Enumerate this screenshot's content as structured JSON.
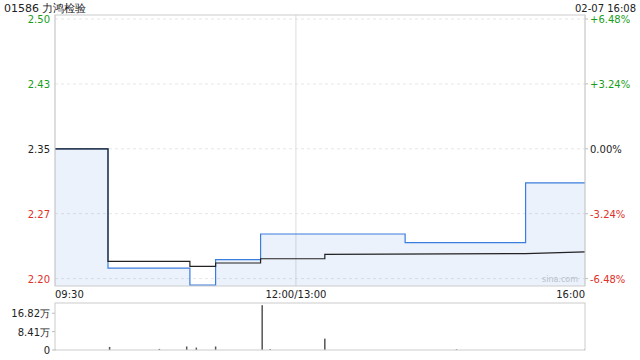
{
  "chart_data": [
    {
      "type": "line",
      "title": "01586 力鸿检验",
      "subtitle": "02-07 16:08",
      "annotation": "sina.com",
      "xlim": [
        0,
        330
      ],
      "xticks": [
        {
          "value": 0,
          "label": "09:30"
        },
        {
          "value": 150,
          "label": "12:00/13:00"
        },
        {
          "value": 330,
          "label": "16:00"
        }
      ],
      "ylim": [
        2.189,
        2.507
      ],
      "yticks": [
        {
          "value": 2.5023,
          "label": "2.50"
        },
        {
          "value": 2.4261,
          "label": "2.43"
        },
        2.35,
        {
          "value": 2.2739,
          "label": "2.27"
        },
        {
          "value": 2.1977,
          "label": "2.20"
        }
      ],
      "y2lim": [
        -6.85,
        6.68
      ],
      "y2ticks": [
        {
          "value": 6.48,
          "label": "+6.48%"
        },
        {
          "value": 3.24,
          "label": "+3.24%"
        },
        {
          "value": 0,
          "label": "0.00%"
        },
        {
          "value": -3.24,
          "label": "-3.24%"
        },
        {
          "value": -6.48,
          "label": "-6.48%"
        }
      ],
      "grid": true,
      "series": [
        {
          "color": "#3b7ddd",
          "x": [
            0,
            33,
            33,
            84,
            84,
            100,
            100,
            128,
            128,
            218,
            218,
            293,
            293,
            330
          ],
          "values": [
            2.35,
            2.35,
            2.21,
            2.21,
            2.19,
            2.19,
            2.22,
            2.22,
            2.25,
            2.25,
            2.24,
            2.24,
            2.31,
            2.31
          ]
        },
        {
          "color": "#222222",
          "x": [
            0,
            33,
            33,
            84,
            84,
            100,
            100,
            128,
            128,
            168,
            168,
            293,
            330
          ],
          "values": [
            2.35,
            2.35,
            2.218,
            2.218,
            2.212,
            2.212,
            2.216,
            2.216,
            2.221,
            2.221,
            2.226,
            2.227,
            2.229
          ]
        }
      ]
    },
    {
      "type": "bar",
      "xlim": [
        0,
        330
      ],
      "x": [
        0,
        34,
        65,
        82,
        88,
        100,
        129,
        134,
        168,
        250,
        330
      ],
      "values": [
        0.3,
        1.4,
        0.5,
        1.6,
        1.1,
        1.6,
        20.5,
        0.4,
        5.2,
        0.3,
        0.3
      ],
      "color": "#555555",
      "ylim": [
        0,
        21.5
      ],
      "yticks": [
        0,
        {
          "value": 8.41,
          "label": "8.41万"
        },
        {
          "value": 16.82,
          "label": "16.82万"
        }
      ],
      "tick_labels": "y"
    }
  ]
}
